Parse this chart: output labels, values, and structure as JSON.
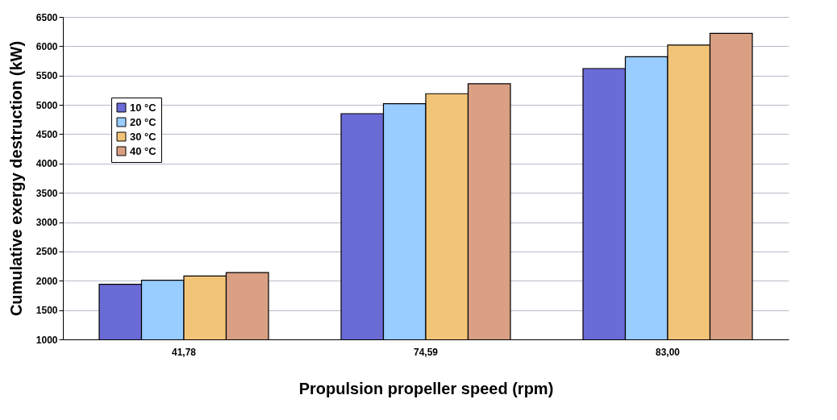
{
  "chart_data": {
    "type": "bar",
    "xlabel": "Propulsion propeller speed (rpm)",
    "ylabel": "Cumulative exergy destruction (kW)",
    "categories": [
      "41,78",
      "74,59",
      "83,00"
    ],
    "series": [
      {
        "name": "10 °C",
        "color": "#6b6bd6",
        "values": [
          1940,
          4850,
          5620
        ]
      },
      {
        "name": "20 °C",
        "color": "#99ccff",
        "values": [
          2010,
          5020,
          5820
        ]
      },
      {
        "name": "30 °C",
        "color": "#f2c478",
        "values": [
          2080,
          5190,
          6020
        ]
      },
      {
        "name": "40 °C",
        "color": "#d9a084",
        "values": [
          2140,
          5360,
          6220
        ]
      }
    ],
    "ylim": [
      1000,
      6500
    ],
    "yticks": [
      1000,
      1500,
      2000,
      2500,
      3000,
      3500,
      4000,
      4500,
      5000,
      5500,
      6000,
      6500
    ],
    "grid": "y",
    "legend": "top left"
  }
}
